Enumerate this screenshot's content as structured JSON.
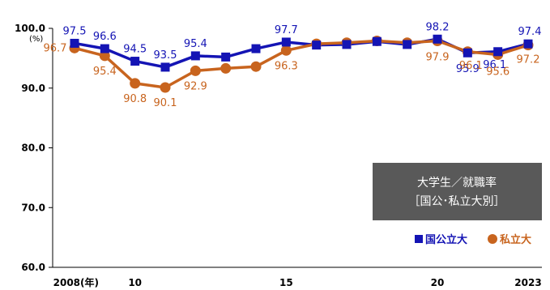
{
  "chart_data": {
    "type": "line",
    "title_lines": [
      "大学生／就職率",
      "［国公･私立大別］"
    ],
    "unit_label": "(%)",
    "ylim": [
      60,
      100
    ],
    "y_ticks": [
      "100.0",
      "90.0",
      "80.0",
      "70.0",
      "60.0"
    ],
    "x": [
      2008,
      2009,
      2010,
      2011,
      2012,
      2013,
      2014,
      2015,
      2016,
      2017,
      2018,
      2019,
      2020,
      2021,
      2022,
      2023
    ],
    "x_tick_labels": [
      "2008(年)",
      "10",
      "15",
      "20",
      "2023"
    ],
    "series": [
      {
        "name": "国公立大",
        "color": "#1414b4",
        "marker": "square",
        "values": [
          97.5,
          96.6,
          94.5,
          93.5,
          95.4,
          95.2,
          96.6,
          97.7,
          97.2,
          97.3,
          97.8,
          97.3,
          98.2,
          95.9,
          96.1,
          97.4
        ],
        "labels": [
          "97.5",
          "96.6",
          "94.5",
          "93.5",
          "95.4",
          null,
          null,
          "97.7",
          null,
          null,
          null,
          null,
          "98.2",
          "95.9",
          "96.1",
          "97.4"
        ]
      },
      {
        "name": "私立大",
        "color": "#c8641e",
        "marker": "circle",
        "values": [
          96.7,
          95.4,
          90.8,
          90.1,
          92.9,
          93.3,
          93.6,
          96.3,
          97.4,
          97.6,
          97.9,
          97.6,
          97.9,
          96.1,
          95.6,
          97.2
        ],
        "labels": [
          "96.7",
          "95.4",
          "90.8",
          "90.1",
          "92.9",
          null,
          null,
          "96.3",
          null,
          null,
          null,
          null,
          "97.9",
          "96.1",
          "95.6",
          "97.2"
        ]
      }
    ],
    "grid": false,
    "legend_position": "bottom-right"
  }
}
